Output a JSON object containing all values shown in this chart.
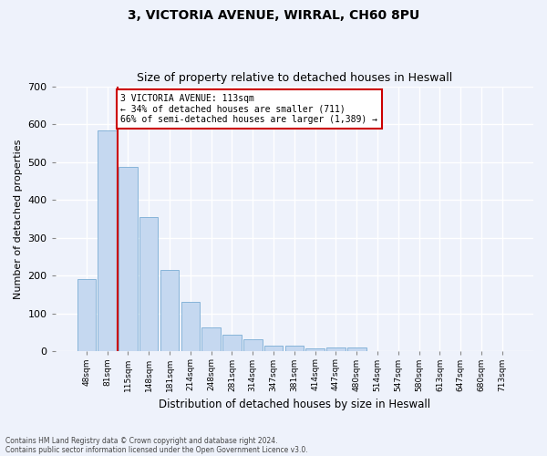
{
  "title1": "3, VICTORIA AVENUE, WIRRAL, CH60 8PU",
  "title2": "Size of property relative to detached houses in Heswall",
  "xlabel": "Distribution of detached houses by size in Heswall",
  "ylabel": "Number of detached properties",
  "categories": [
    "48sqm",
    "81sqm",
    "115sqm",
    "148sqm",
    "181sqm",
    "214sqm",
    "248sqm",
    "281sqm",
    "314sqm",
    "347sqm",
    "381sqm",
    "414sqm",
    "447sqm",
    "480sqm",
    "514sqm",
    "547sqm",
    "580sqm",
    "613sqm",
    "647sqm",
    "680sqm",
    "713sqm"
  ],
  "values": [
    192,
    583,
    488,
    355,
    215,
    132,
    63,
    45,
    32,
    16,
    16,
    9,
    11,
    10,
    0,
    0,
    0,
    0,
    0,
    0,
    0
  ],
  "bar_color": "#c5d8f0",
  "bar_edge_color": "#7aadd4",
  "vline_index": 1.5,
  "annotation_text": "3 VICTORIA AVENUE: 113sqm\n← 34% of detached houses are smaller (711)\n66% of semi-detached houses are larger (1,389) →",
  "vline_color": "#cc0000",
  "annotation_box_edge_color": "#cc0000",
  "ylim": [
    0,
    700
  ],
  "yticks": [
    0,
    100,
    200,
    300,
    400,
    500,
    600,
    700
  ],
  "footer1": "Contains HM Land Registry data © Crown copyright and database right 2024.",
  "footer2": "Contains public sector information licensed under the Open Government Licence v3.0.",
  "bg_color": "#eef2fb",
  "grid_color": "#ffffff",
  "title1_fontsize": 10,
  "title2_fontsize": 9
}
